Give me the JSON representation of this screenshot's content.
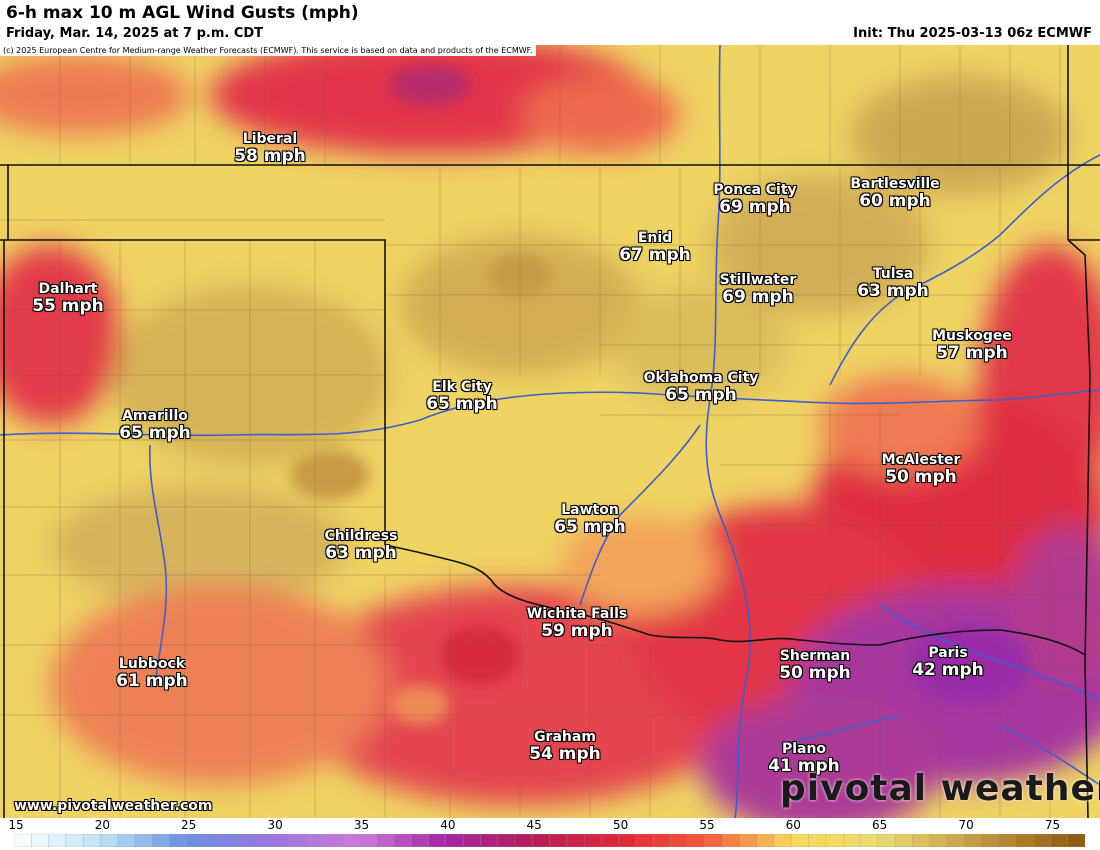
{
  "header": {
    "title": "6-h max 10 m AGL Wind Gusts (mph)",
    "subtitle": "Friday, Mar. 14, 2025 at 7 p.m. CDT",
    "init": "Init: Thu 2025-03-13 06z ECMWF"
  },
  "copyright": "(c) 2025 European Centre for Medium-range Weather Forecasts (ECMWF). This service is based on data and products of the ECMWF.",
  "cities": [
    {
      "name": "Liberal",
      "value": "58 mph"
    },
    {
      "name": "Ponca City",
      "value": "69 mph"
    },
    {
      "name": "Bartlesville",
      "value": "60 mph"
    },
    {
      "name": "Enid",
      "value": "67 mph"
    },
    {
      "name": "Dalhart",
      "value": "55 mph"
    },
    {
      "name": "Stillwater",
      "value": "69 mph"
    },
    {
      "name": "Tulsa",
      "value": "63 mph"
    },
    {
      "name": "Muskogee",
      "value": "57 mph"
    },
    {
      "name": "Elk City",
      "value": "65 mph"
    },
    {
      "name": "Oklahoma City",
      "value": "65 mph"
    },
    {
      "name": "Amarillo",
      "value": "65 mph"
    },
    {
      "name": "McAlester",
      "value": "50 mph"
    },
    {
      "name": "Lawton",
      "value": "65 mph"
    },
    {
      "name": "Childress",
      "value": "63 mph"
    },
    {
      "name": "Wichita Falls",
      "value": "59 mph"
    },
    {
      "name": "Sherman",
      "value": "50 mph"
    },
    {
      "name": "Paris",
      "value": "42 mph"
    },
    {
      "name": "Lubbock",
      "value": "61 mph"
    },
    {
      "name": "Graham",
      "value": "54 mph"
    },
    {
      "name": "Plano",
      "value": "41 mph"
    }
  ],
  "branding": {
    "site": "www.pivotalweather.com",
    "logo": "pivotal weather"
  },
  "colorbar": {
    "ticks": [
      "15",
      "20",
      "25",
      "30",
      "35",
      "40",
      "45",
      "50",
      "55",
      "60",
      "65",
      "70",
      "75"
    ],
    "min": 15,
    "max": 77,
    "stops": [
      {
        "v": 15,
        "c": "#ffffff"
      },
      {
        "v": 20,
        "c": "#bfe3f5"
      },
      {
        "v": 25,
        "c": "#6b8fe0"
      },
      {
        "v": 30,
        "c": "#9a77e0"
      },
      {
        "v": 35,
        "c": "#cc7ad6"
      },
      {
        "v": 40,
        "c": "#a526a5"
      },
      {
        "v": 45,
        "c": "#b51e57"
      },
      {
        "v": 50,
        "c": "#e0263a"
      },
      {
        "v": 55,
        "c": "#f25a3c"
      },
      {
        "v": 60,
        "c": "#f7d858"
      },
      {
        "v": 65,
        "c": "#eadb72"
      },
      {
        "v": 70,
        "c": "#c9a24a"
      },
      {
        "v": 75,
        "c": "#9e6a1c"
      },
      {
        "v": 77,
        "c": "#8a5810"
      }
    ]
  },
  "colors": {
    "purple_low": "#a63bae",
    "red_mid": "#e0313f",
    "orange": "#f08050",
    "yellow": "#f2dc6a",
    "tan_high": "#cfad55",
    "river": "#3d5ecc",
    "border": "#1a1a1a"
  }
}
